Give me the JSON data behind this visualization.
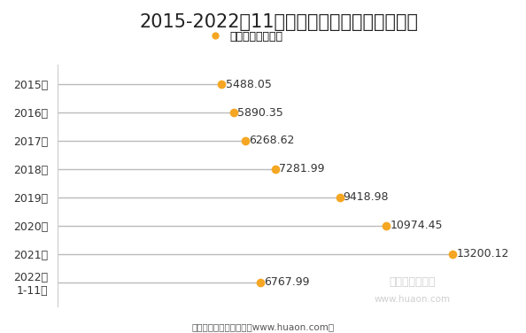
{
  "title": "2015-2022年11月贵州省成交土地面积统计图",
  "legend_label": "成交面积（万㎡）",
  "categories": [
    "2015年",
    "2016年",
    "2017年",
    "2018年",
    "2019年",
    "2020年",
    "2021年",
    "2022年\n1-11月"
  ],
  "values": [
    5488.05,
    5890.35,
    6268.62,
    7281.99,
    9418.98,
    10974.45,
    13200.12,
    6767.99
  ],
  "dot_color": "#F5A623",
  "line_color": "#BBBBBB",
  "label_color": "#333333",
  "bg_color": "#FFFFFF",
  "xlim_max": 14800,
  "title_fontsize": 15,
  "label_fontsize": 9,
  "tick_fontsize": 9,
  "footer_text": "制图：华经产业研究院（www.huaon.com）",
  "watermark_line1": "华经产业研究院",
  "watermark_line2": "www.huaon.com"
}
